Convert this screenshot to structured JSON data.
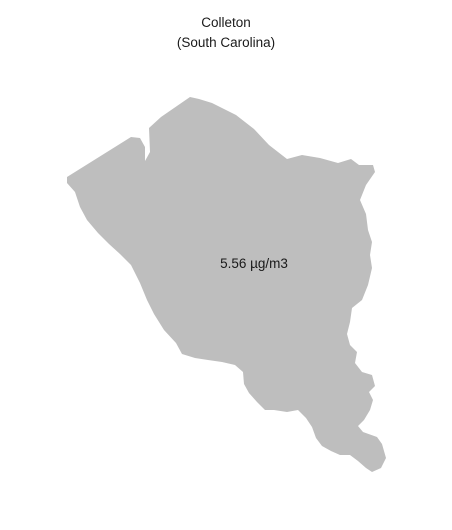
{
  "title": "Colleton",
  "subtitle": "(South Carolina)",
  "region": {
    "name": "Colleton",
    "value_label": "5.56 µg/m3",
    "fill_color": "#bebebe",
    "text_color": "#1a1a1a"
  }
}
